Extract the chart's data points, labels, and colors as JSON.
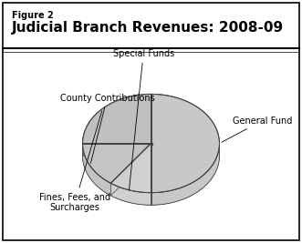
{
  "title": "Judicial Branch Revenues: 2008-09",
  "figure_label": "Figure 2",
  "slices": [
    {
      "label": "General Fund",
      "value": 50,
      "color": "#c8c8c8"
    },
    {
      "label": "Special Funds",
      "value": 10,
      "color": "#d0d0d0"
    },
    {
      "label": "County Contributions",
      "value": 15,
      "color": "#c4c4c4"
    },
    {
      "label": "Fines, Fees, and\nSurcharges",
      "value": 25,
      "color": "#c0c0c0"
    }
  ],
  "side_color": "#707070",
  "edge_color": "#444444",
  "background_color": "#ffffff",
  "title_fontsize": 11,
  "fig_label_fontsize": 7,
  "label_fontsize": 7
}
